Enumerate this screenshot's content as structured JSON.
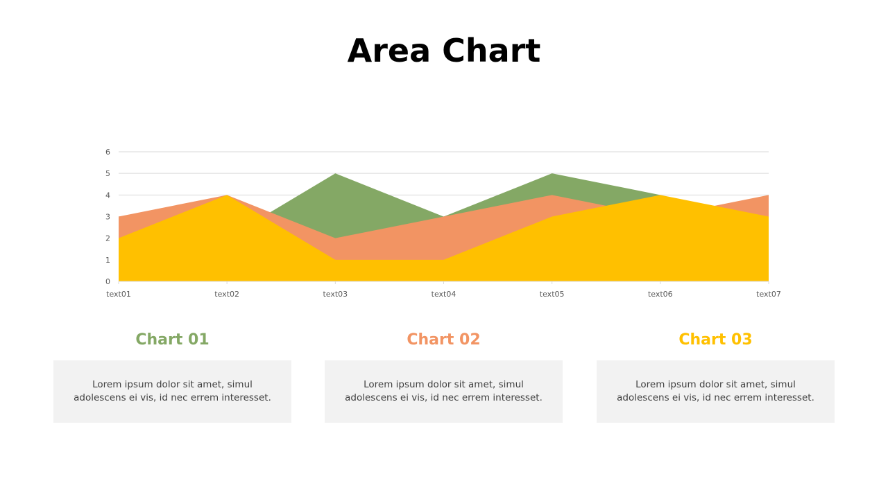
{
  "title": "Area Chart",
  "chart_data": {
    "type": "area",
    "categories": [
      "text01",
      "text02",
      "text03",
      "text04",
      "text05",
      "text06",
      "text07"
    ],
    "ylim": [
      0,
      6
    ],
    "yticks": [
      0,
      1,
      2,
      3,
      4,
      5,
      6
    ],
    "grid": true,
    "series": [
      {
        "color": "#84a865",
        "values": [
          2,
          2,
          5,
          3,
          5,
          4,
          2
        ]
      },
      {
        "color": "#f29463",
        "values": [
          3,
          4,
          2,
          3,
          4,
          3,
          4
        ]
      },
      {
        "color": "#ffc000",
        "values": [
          2,
          4,
          1,
          1,
          3,
          4,
          3
        ]
      }
    ]
  },
  "cards": [
    {
      "title": "Chart 01",
      "color": "#84a865",
      "text": "Lorem ipsum dolor sit amet, simul adolescens ei vis, id nec errem interesset."
    },
    {
      "title": "Chart 02",
      "color": "#f29463",
      "text": "Lorem ipsum dolor sit amet, simul adolescens ei vis, id nec errem interesset."
    },
    {
      "title": "Chart 03",
      "color": "#ffc000",
      "text": "Lorem ipsum dolor sit amet, simul adolescens ei vis, id nec errem interesset."
    }
  ]
}
